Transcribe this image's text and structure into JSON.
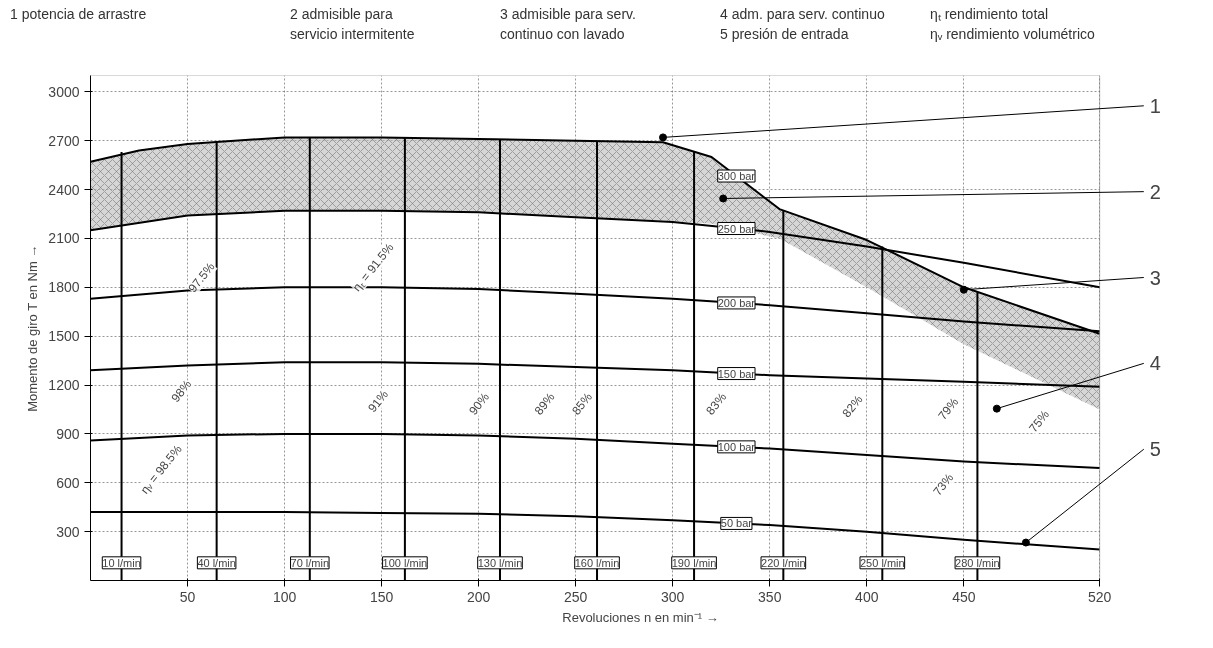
{
  "chart_data": {
    "type": "line",
    "xlabel": "Revoluciones n en min⁻¹ →",
    "ylabel": "Momento de giro T en Nm →",
    "xlim": [
      0,
      520
    ],
    "ylim": [
      0,
      3100
    ],
    "xticks": [
      50,
      100,
      150,
      200,
      250,
      300,
      350,
      400,
      450,
      520
    ],
    "yticks": [
      300,
      600,
      900,
      1200,
      1500,
      1800,
      2100,
      2400,
      2700,
      3000
    ],
    "grid": true,
    "marker": "none",
    "line_style": "solid",
    "series": [
      {
        "name": "300 bar",
        "color": "#000000",
        "x": [
          0,
          25,
          50,
          100,
          150,
          200,
          250,
          295,
          320,
          355,
          400,
          450,
          520
        ],
        "values": [
          2570,
          2640,
          2680,
          2720,
          2720,
          2710,
          2700,
          2690,
          2600,
          2280,
          2090,
          1800,
          1515
        ],
        "lower": [
          2150,
          2200,
          2240,
          2270,
          2270,
          2260,
          2230,
          2210,
          2190,
          2100,
          1800,
          1450,
          1050
        ],
        "upper": [
          2570,
          2640,
          2680,
          2720,
          2720,
          2710,
          2700,
          2690,
          2600,
          2280,
          2090,
          1800,
          1515
        ]
      },
      {
        "name": "250 bar",
        "color": "#000000",
        "x": [
          0,
          50,
          100,
          150,
          200,
          250,
          300,
          350,
          400,
          450,
          520
        ],
        "values": [
          2150,
          2240,
          2270,
          2270,
          2260,
          2230,
          2200,
          2140,
          2050,
          1950,
          1800
        ]
      },
      {
        "name": "200 bar",
        "color": "#000000",
        "x": [
          0,
          50,
          100,
          150,
          200,
          250,
          300,
          350,
          400,
          450,
          520
        ],
        "values": [
          1730,
          1780,
          1800,
          1800,
          1790,
          1760,
          1730,
          1690,
          1640,
          1590,
          1530
        ]
      },
      {
        "name": "150 bar",
        "color": "#000000",
        "x": [
          0,
          50,
          100,
          150,
          200,
          250,
          300,
          350,
          400,
          450,
          520
        ],
        "values": [
          1290,
          1320,
          1340,
          1340,
          1330,
          1310,
          1290,
          1260,
          1240,
          1220,
          1190
        ]
      },
      {
        "name": "100 bar",
        "color": "#000000",
        "x": [
          0,
          50,
          100,
          150,
          200,
          250,
          300,
          350,
          400,
          450,
          520
        ],
        "values": [
          860,
          890,
          900,
          900,
          890,
          870,
          840,
          810,
          770,
          730,
          690
        ]
      },
      {
        "name": "50 bar",
        "color": "#000000",
        "x": [
          0,
          50,
          100,
          150,
          200,
          250,
          300,
          350,
          400,
          450,
          520
        ],
        "values": [
          420,
          420,
          420,
          415,
          410,
          395,
          370,
          340,
          300,
          250,
          190
        ]
      },
      {
        "name": "10 l/min",
        "color": "#000000",
        "x": [
          16,
          16
        ],
        "values": [
          0,
          2630
        ]
      },
      {
        "name": "40 l/min",
        "color": "#000000",
        "x": [
          65,
          65
        ],
        "values": [
          0,
          2690
        ]
      },
      {
        "name": "70 l/min",
        "color": "#000000",
        "x": [
          113,
          113
        ],
        "values": [
          0,
          2720
        ]
      },
      {
        "name": "100 l/min",
        "color": "#000000",
        "x": [
          162,
          162
        ],
        "values": [
          0,
          2720
        ]
      },
      {
        "name": "130 l/min",
        "color": "#000000",
        "x": [
          211,
          211
        ],
        "values": [
          0,
          2710
        ]
      },
      {
        "name": "160 l/min",
        "color": "#000000",
        "x": [
          261,
          261
        ],
        "values": [
          0,
          2700
        ]
      },
      {
        "name": "190 l/min",
        "color": "#000000",
        "x": [
          311,
          311
        ],
        "values": [
          0,
          2630
        ]
      },
      {
        "name": "220 l/min",
        "color": "#000000",
        "x": [
          357,
          357
        ],
        "values": [
          0,
          2270
        ]
      },
      {
        "name": "250 l/min",
        "color": "#000000",
        "x": [
          408,
          408
        ],
        "values": [
          0,
          2050
        ]
      },
      {
        "name": "280 l/min",
        "color": "#000000",
        "x": [
          457,
          457
        ],
        "values": [
          0,
          1770
        ]
      }
    ],
    "annotations": [
      "1  potencia de arrastre",
      "2  admisible para\nservicio intermitente",
      "3  admisible para serv.\ncontinuo con lavado",
      "4  adm. para serv. continuo",
      "5  presión de entrada",
      "ηₜ rendimiento total",
      "ηᵥ rendimiento volumétrico",
      {
        "text": "1",
        "x": 295,
        "y": 2720
      },
      {
        "text": "2",
        "x": 326,
        "y": 2345
      },
      {
        "text": "3",
        "x": 450,
        "y": 1785
      },
      {
        "text": "4",
        "x": 467,
        "y": 1055
      },
      {
        "text": "5",
        "x": 482,
        "y": 233
      },
      "97.5%",
      "ηₜ = 91.5%",
      "98%",
      "ηᵥ = 98.5%",
      "91%",
      "90%",
      "89%",
      "85%",
      "83%",
      "82%",
      "79%",
      "75%",
      "73%"
    ]
  }
}
